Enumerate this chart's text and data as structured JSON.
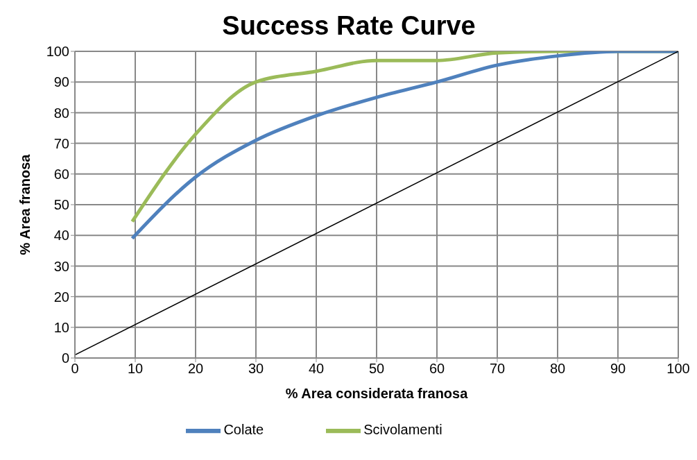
{
  "chart_data": {
    "type": "line",
    "title": "Success Rate Curve",
    "xlabel": "% Area considerata franosa",
    "ylabel": "% Area franosa",
    "series": [
      {
        "name": "Scivolamenti",
        "color": "#9bbb59",
        "x": [
          9.5,
          20,
          30,
          40,
          50,
          60,
          70,
          80,
          90,
          100
        ],
        "values": [
          44.5,
          73,
          90,
          93.5,
          97,
          97,
          99.5,
          100,
          100,
          100
        ]
      },
      {
        "name": "Colate",
        "color": "#4f81bd",
        "x": [
          9.5,
          20,
          30,
          40,
          50,
          60,
          70,
          80,
          90,
          100
        ],
        "values": [
          39,
          59,
          71,
          79,
          85,
          90,
          95.5,
          98.5,
          100,
          100
        ]
      },
      {
        "color": "#000000",
        "x": [
          0,
          100
        ],
        "values": [
          1,
          100
        ]
      }
    ],
    "xlim": [
      0,
      100
    ],
    "xticks": [
      0,
      10,
      20,
      30,
      40,
      50,
      60,
      70,
      80,
      90,
      100
    ],
    "ylim": [
      0,
      100
    ],
    "yticks": [
      0,
      10,
      20,
      30,
      40,
      50,
      60,
      70,
      80,
      90,
      100
    ],
    "grid": true,
    "legend": "bottom",
    "marker": "none",
    "line_style": "solid"
  }
}
